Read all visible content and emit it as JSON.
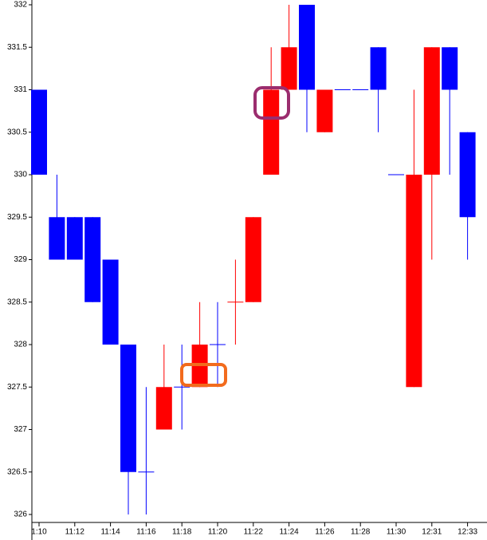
{
  "chart_data": {
    "type": "candlestick",
    "categories": [
      "1:10",
      null,
      "11:12",
      null,
      "11:14",
      null,
      "11:16",
      null,
      "11:18",
      null,
      "11:20",
      null,
      "11:22",
      null,
      "11:24",
      null,
      "11:26",
      null,
      "11:28",
      null,
      "11:30",
      null,
      "12:31",
      null,
      "12:33"
    ],
    "open": [
      331,
      329.5,
      329.5,
      329.5,
      329,
      328,
      326.5,
      327,
      327.5,
      327.5,
      328,
      328.5,
      328.5,
      330,
      331,
      332,
      330.5,
      331,
      331,
      331.5,
      330,
      327.5,
      330,
      331.5,
      330.5
    ],
    "high": [
      331,
      330,
      329.5,
      329.5,
      329,
      328,
      327.5,
      328,
      328,
      328.5,
      328.5,
      329,
      329.5,
      331.5,
      332,
      332,
      331,
      331,
      331,
      331.5,
      330,
      331,
      331.5,
      331.5,
      330.5
    ],
    "low": [
      330,
      329,
      329,
      328.5,
      328,
      326,
      326,
      327,
      327,
      327.5,
      327.5,
      328,
      328.5,
      330,
      331,
      330.5,
      330.5,
      331,
      331,
      330.5,
      330,
      327.5,
      329,
      330,
      329
    ],
    "close": [
      330,
      329,
      329,
      328.5,
      328,
      326.5,
      326.5,
      327.5,
      327.5,
      328,
      328,
      328.5,
      329.5,
      331,
      331.5,
      331,
      331,
      331,
      331,
      331,
      330,
      330,
      331.5,
      331,
      329.5
    ],
    "colors": [
      "#0000ff",
      "#0000ff",
      "#0000ff",
      "#0000ff",
      "#0000ff",
      "#0000ff",
      "#0000ff",
      "#ff0000",
      "#0000ff",
      "#ff0000",
      "#0000ff",
      "#ff0000",
      "#ff0000",
      "#ff0000",
      "#ff0000",
      "#0000ff",
      "#ff0000",
      "#0000ff",
      "#0000ff",
      "#0000ff",
      "#0000ff",
      "#ff0000",
      "#ff0000",
      "#0000ff",
      "#0000ff"
    ],
    "ylim": [
      326,
      332
    ],
    "yticks": [
      326,
      326.5,
      327,
      327.5,
      328,
      328.5,
      329,
      329.5,
      330,
      330.5,
      331,
      331.5,
      332
    ]
  }
}
